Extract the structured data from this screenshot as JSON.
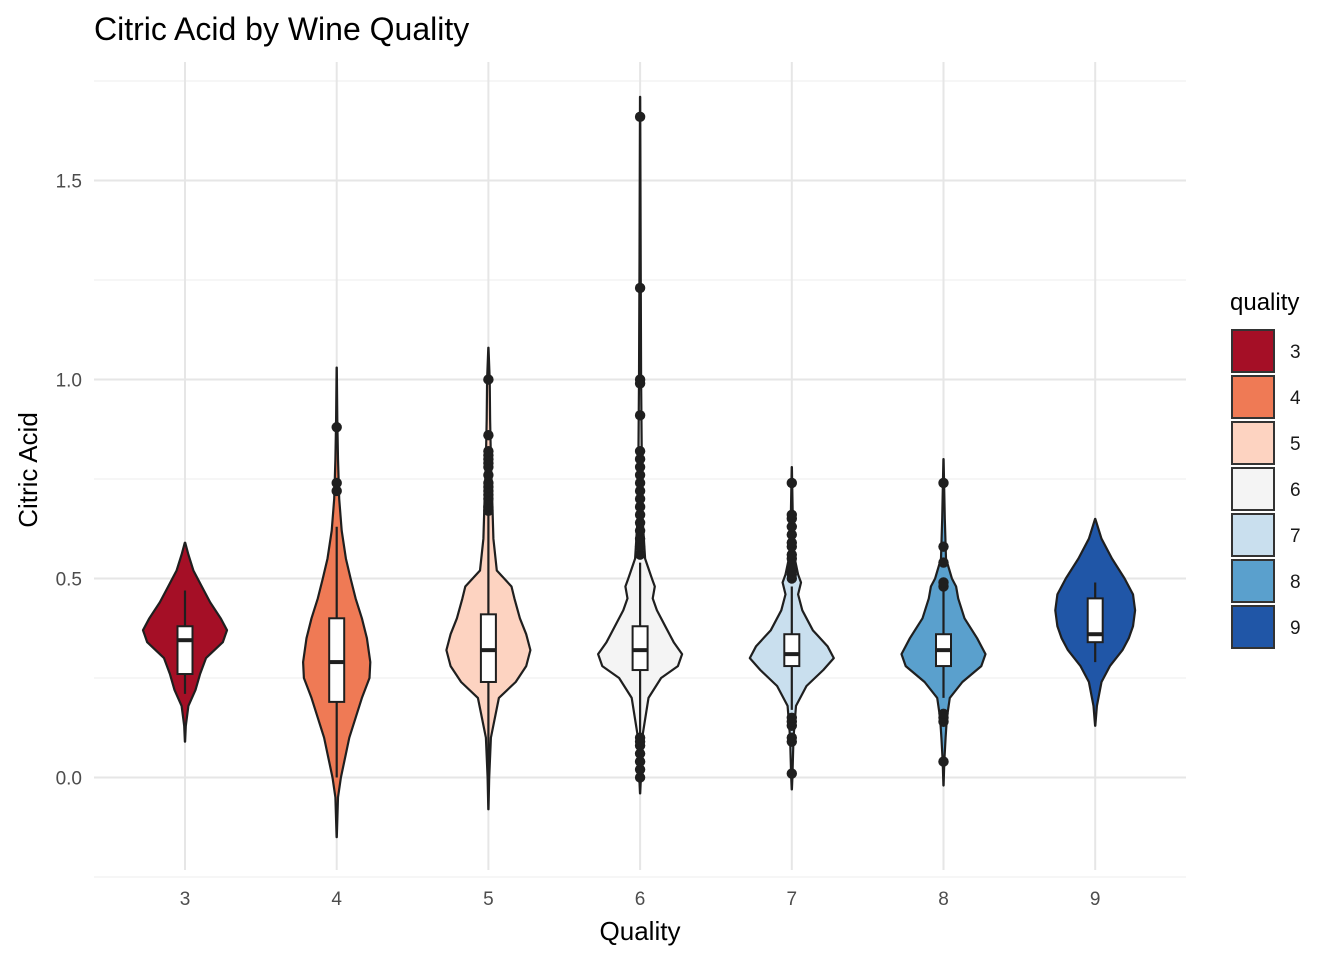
{
  "chart_data": {
    "type": "violin",
    "title": "Citric Acid by Wine Quality",
    "xlabel": "Quality",
    "ylabel": "Citric Acid",
    "ylim": [
      -0.24,
      1.79
    ],
    "yticks": [
      0.0,
      0.5,
      1.0,
      1.5
    ],
    "ytick_labels": [
      "0.0",
      "0.5",
      "1.0",
      "1.5"
    ],
    "grid": true,
    "legend": {
      "title": "quality",
      "position": "right"
    },
    "categories": [
      "3",
      "4",
      "5",
      "6",
      "7",
      "8",
      "9"
    ],
    "colors": [
      "#a50f26",
      "#ef7a55",
      "#fdd3c1",
      "#f4f4f4",
      "#c9dfee",
      "#5aa0cd",
      "#2056a7"
    ],
    "series": [
      {
        "category": "3",
        "violin_range": [
          0.09,
          0.59
        ],
        "density": [
          [
            0.09,
            0.003
          ],
          [
            0.13,
            0.02
          ],
          [
            0.18,
            0.08
          ],
          [
            0.22,
            0.25
          ],
          [
            0.26,
            0.36
          ],
          [
            0.3,
            0.5
          ],
          [
            0.34,
            0.9
          ],
          [
            0.37,
            1.0
          ],
          [
            0.4,
            0.85
          ],
          [
            0.44,
            0.6
          ],
          [
            0.48,
            0.4
          ],
          [
            0.52,
            0.2
          ],
          [
            0.56,
            0.08
          ],
          [
            0.59,
            0.004
          ]
        ],
        "box": {
          "q1": 0.26,
          "median": 0.345,
          "q3": 0.38
        },
        "whiskers": [
          0.21,
          0.47
        ],
        "outliers": []
      },
      {
        "category": "4",
        "violin_range": [
          -0.15,
          1.03
        ],
        "density": [
          [
            -0.15,
            0.003
          ],
          [
            -0.05,
            0.03
          ],
          [
            0.0,
            0.1
          ],
          [
            0.05,
            0.2
          ],
          [
            0.1,
            0.3
          ],
          [
            0.15,
            0.45
          ],
          [
            0.2,
            0.6
          ],
          [
            0.25,
            0.78
          ],
          [
            0.29,
            0.8
          ],
          [
            0.35,
            0.72
          ],
          [
            0.4,
            0.6
          ],
          [
            0.45,
            0.45
          ],
          [
            0.5,
            0.33
          ],
          [
            0.55,
            0.22
          ],
          [
            0.62,
            0.12
          ],
          [
            0.7,
            0.06
          ],
          [
            0.8,
            0.03
          ],
          [
            0.9,
            0.015
          ],
          [
            1.03,
            0.003
          ]
        ],
        "box": {
          "q1": 0.19,
          "median": 0.29,
          "q3": 0.4
        },
        "whiskers": [
          0.0,
          0.63
        ],
        "outliers": [
          0.72,
          0.74,
          0.88
        ]
      },
      {
        "category": "5",
        "violin_range": [
          -0.08,
          1.08
        ],
        "density": [
          [
            -0.08,
            0.003
          ],
          [
            0.0,
            0.02
          ],
          [
            0.1,
            0.06
          ],
          [
            0.2,
            0.25
          ],
          [
            0.24,
            0.65
          ],
          [
            0.28,
            0.9
          ],
          [
            0.32,
            1.0
          ],
          [
            0.36,
            0.9
          ],
          [
            0.4,
            0.75
          ],
          [
            0.45,
            0.62
          ],
          [
            0.48,
            0.55
          ],
          [
            0.52,
            0.2
          ],
          [
            0.6,
            0.12
          ],
          [
            0.7,
            0.09
          ],
          [
            0.8,
            0.06
          ],
          [
            0.9,
            0.04
          ],
          [
            1.0,
            0.03
          ],
          [
            1.08,
            0.003
          ]
        ],
        "box": {
          "q1": 0.24,
          "median": 0.32,
          "q3": 0.41
        },
        "whiskers": [
          0.0,
          0.66
        ],
        "outliers": [
          0.67,
          0.68,
          0.7,
          0.71,
          0.72,
          0.73,
          0.74,
          0.76,
          0.78,
          0.79,
          0.8,
          0.81,
          0.82,
          0.86,
          1.0
        ]
      },
      {
        "category": "6",
        "violin_range": [
          -0.04,
          1.71
        ],
        "density": [
          [
            -0.04,
            0.003
          ],
          [
            0.0,
            0.02
          ],
          [
            0.1,
            0.05
          ],
          [
            0.2,
            0.2
          ],
          [
            0.25,
            0.5
          ],
          [
            0.28,
            0.9
          ],
          [
            0.31,
            1.0
          ],
          [
            0.34,
            0.8
          ],
          [
            0.38,
            0.6
          ],
          [
            0.42,
            0.4
          ],
          [
            0.45,
            0.3
          ],
          [
            0.48,
            0.35
          ],
          [
            0.5,
            0.28
          ],
          [
            0.55,
            0.12
          ],
          [
            0.65,
            0.06
          ],
          [
            0.8,
            0.04
          ],
          [
            1.0,
            0.025
          ],
          [
            1.3,
            0.015
          ],
          [
            1.71,
            0.003
          ]
        ],
        "box": {
          "q1": 0.27,
          "median": 0.32,
          "q3": 0.38
        },
        "whiskers": [
          0.11,
          0.54
        ],
        "outliers": [
          0.0,
          0.02,
          0.04,
          0.06,
          0.08,
          0.09,
          0.1,
          0.56,
          0.58,
          0.6,
          0.62,
          0.64,
          0.66,
          0.68,
          0.7,
          0.72,
          0.74,
          0.76,
          0.78,
          0.8,
          0.82,
          0.91,
          0.99,
          1.0,
          1.23,
          1.66
        ]
      },
      {
        "category": "7",
        "violin_range": [
          -0.03,
          0.78
        ],
        "density": [
          [
            -0.03,
            0.003
          ],
          [
            0.0,
            0.015
          ],
          [
            0.1,
            0.04
          ],
          [
            0.18,
            0.1
          ],
          [
            0.23,
            0.35
          ],
          [
            0.27,
            0.75
          ],
          [
            0.3,
            1.0
          ],
          [
            0.33,
            0.85
          ],
          [
            0.37,
            0.5
          ],
          [
            0.42,
            0.25
          ],
          [
            0.46,
            0.15
          ],
          [
            0.49,
            0.22
          ],
          [
            0.51,
            0.15
          ],
          [
            0.56,
            0.05
          ],
          [
            0.65,
            0.025
          ],
          [
            0.78,
            0.003
          ]
        ],
        "box": {
          "q1": 0.28,
          "median": 0.31,
          "q3": 0.36
        },
        "whiskers": [
          0.17,
          0.48
        ],
        "outliers": [
          0.01,
          0.09,
          0.1,
          0.13,
          0.14,
          0.15,
          0.5,
          0.51,
          0.52,
          0.53,
          0.55,
          0.56,
          0.58,
          0.59,
          0.61,
          0.63,
          0.65,
          0.66,
          0.74
        ]
      },
      {
        "category": "8",
        "violin_range": [
          -0.02,
          0.8
        ],
        "density": [
          [
            -0.02,
            0.003
          ],
          [
            0.04,
            0.02
          ],
          [
            0.1,
            0.05
          ],
          [
            0.15,
            0.08
          ],
          [
            0.2,
            0.15
          ],
          [
            0.24,
            0.45
          ],
          [
            0.28,
            0.9
          ],
          [
            0.31,
            1.0
          ],
          [
            0.35,
            0.8
          ],
          [
            0.4,
            0.5
          ],
          [
            0.45,
            0.35
          ],
          [
            0.48,
            0.3
          ],
          [
            0.5,
            0.2
          ],
          [
            0.55,
            0.06
          ],
          [
            0.65,
            0.03
          ],
          [
            0.8,
            0.003
          ]
        ],
        "box": {
          "q1": 0.28,
          "median": 0.32,
          "q3": 0.36
        },
        "whiskers": [
          0.2,
          0.47
        ],
        "outliers": [
          0.04,
          0.14,
          0.15,
          0.16,
          0.48,
          0.49,
          0.54,
          0.58,
          0.74
        ]
      },
      {
        "category": "9",
        "violin_range": [
          0.13,
          0.65
        ],
        "density": [
          [
            0.13,
            0.003
          ],
          [
            0.18,
            0.04
          ],
          [
            0.24,
            0.15
          ],
          [
            0.28,
            0.35
          ],
          [
            0.32,
            0.65
          ],
          [
            0.35,
            0.8
          ],
          [
            0.38,
            0.9
          ],
          [
            0.42,
            0.95
          ],
          [
            0.46,
            0.9
          ],
          [
            0.5,
            0.7
          ],
          [
            0.55,
            0.4
          ],
          [
            0.6,
            0.15
          ],
          [
            0.65,
            0.003
          ]
        ],
        "box": {
          "q1": 0.34,
          "median": 0.36,
          "q3": 0.45
        },
        "whiskers": [
          0.29,
          0.49
        ],
        "outliers": []
      }
    ]
  }
}
